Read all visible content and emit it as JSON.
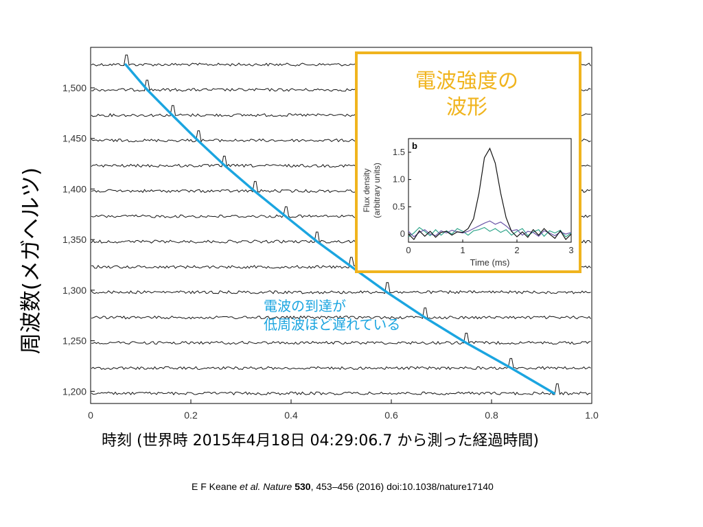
{
  "chart_data": [
    {
      "type": "line",
      "xlabel": "時刻 (世界時 2015年4月18日 04:29:06.7 から測った経過時間)",
      "ylabel": "周波数(メガヘルツ)",
      "xlim": [
        0,
        1.0
      ],
      "ylim": [
        1188,
        1540
      ],
      "x_ticks": [
        0,
        0.2,
        0.4,
        0.6,
        0.8,
        1.0
      ],
      "x_tick_labels": [
        "0",
        "0.2",
        "0.4",
        "0.6",
        "0.8",
        "1.0"
      ],
      "y_ticks": [
        1200,
        1250,
        1300,
        1350,
        1400,
        1450,
        1500
      ],
      "y_tick_labels": [
        "1,200",
        "1,250",
        "1,300",
        "1,350",
        "1,400",
        "1,450",
        "1,500"
      ],
      "channels_mhz": [
        1523,
        1498,
        1473,
        1448,
        1423,
        1398,
        1373,
        1348,
        1323,
        1298,
        1273,
        1248,
        1223,
        1198
      ],
      "pulse_arrival_time": [
        0.07,
        0.113,
        0.163,
        0.214,
        0.268,
        0.327,
        0.389,
        0.452,
        0.521,
        0.591,
        0.667,
        0.749,
        0.839,
        0.932
      ],
      "dispersion_fit": {
        "x": [
          0.07,
          0.113,
          0.163,
          0.214,
          0.268,
          0.327,
          0.389,
          0.452,
          0.521,
          0.591,
          0.667,
          0.749,
          0.839,
          0.925
        ],
        "y": [
          1523,
          1498,
          1473,
          1448,
          1423,
          1398,
          1373,
          1348,
          1323,
          1298,
          1273,
          1248,
          1223,
          1198
        ],
        "color": "#1ba5e0"
      },
      "annotation": "電波の到達が\n低周波ほど遅れている",
      "annotation_color": "#1ba5e0",
      "grid": false,
      "trace_color": "#111111"
    },
    {
      "type": "line",
      "panel_label": "b",
      "xlabel": "Time (ms)",
      "ylabel": "Flux density\n(arbitrary units)",
      "xlim": [
        0,
        3
      ],
      "ylim": [
        -0.15,
        1.75
      ],
      "x_ticks": [
        0,
        1,
        2,
        3
      ],
      "x_tick_labels": [
        "0",
        "1",
        "2",
        "3"
      ],
      "y_ticks": [
        0,
        0.5,
        1.0,
        1.5
      ],
      "y_tick_labels": [
        "0",
        "0.5",
        "1.0",
        "1.5"
      ],
      "x": [
        0,
        0.1,
        0.2,
        0.3,
        0.4,
        0.5,
        0.6,
        0.7,
        0.8,
        0.9,
        1.0,
        1.1,
        1.2,
        1.3,
        1.4,
        1.5,
        1.6,
        1.7,
        1.8,
        1.9,
        2.0,
        2.1,
        2.2,
        2.3,
        2.4,
        2.5,
        2.6,
        2.7,
        2.8,
        2.9,
        3.0
      ],
      "series": [
        {
          "color": "#111111",
          "values": [
            0.0,
            -0.1,
            0.06,
            -0.04,
            0.05,
            -0.06,
            0.03,
            0.05,
            -0.02,
            0.04,
            0.03,
            0.1,
            0.28,
            0.75,
            1.4,
            1.57,
            1.3,
            0.75,
            0.3,
            0.05,
            -0.05,
            0.04,
            -0.06,
            0.08,
            -0.02,
            0.1,
            0.0,
            -0.08,
            0.06,
            -0.1,
            0.0
          ]
        },
        {
          "color": "#6b55a8",
          "values": [
            0.05,
            -0.05,
            0.03,
            0.08,
            0.0,
            -0.03,
            0.06,
            0.02,
            0.07,
            0.04,
            0.02,
            0.05,
            0.1,
            0.15,
            0.2,
            0.24,
            0.18,
            0.22,
            0.15,
            0.06,
            0.08,
            -0.02,
            0.05,
            0.03,
            -0.04,
            0.06,
            0.02,
            -0.03,
            0.04,
            0.0,
            0.03
          ]
        },
        {
          "color": "#2ea58a",
          "values": [
            -0.05,
            0.02,
            0.12,
            0.05,
            -0.03,
            0.08,
            -0.02,
            0.06,
            0.0,
            0.1,
            0.05,
            -0.02,
            0.06,
            0.08,
            0.12,
            0.05,
            0.1,
            0.03,
            0.08,
            -0.02,
            0.05,
            0.1,
            -0.03,
            0.04,
            0.08,
            -0.04,
            0.06,
            0.02,
            0.07,
            -0.05,
            0.02
          ]
        }
      ],
      "inset_title": "電波強度の\n波形",
      "inset_border_color": "#f0b41e",
      "inset_title_color": "#f0b41e"
    }
  ],
  "citation": {
    "authors": "E F Keane ",
    "etal": "et al.",
    "journal": " Nature ",
    "volume": "530",
    "rest": ", 453–456 (2016) doi:10.1038/nature17140"
  }
}
